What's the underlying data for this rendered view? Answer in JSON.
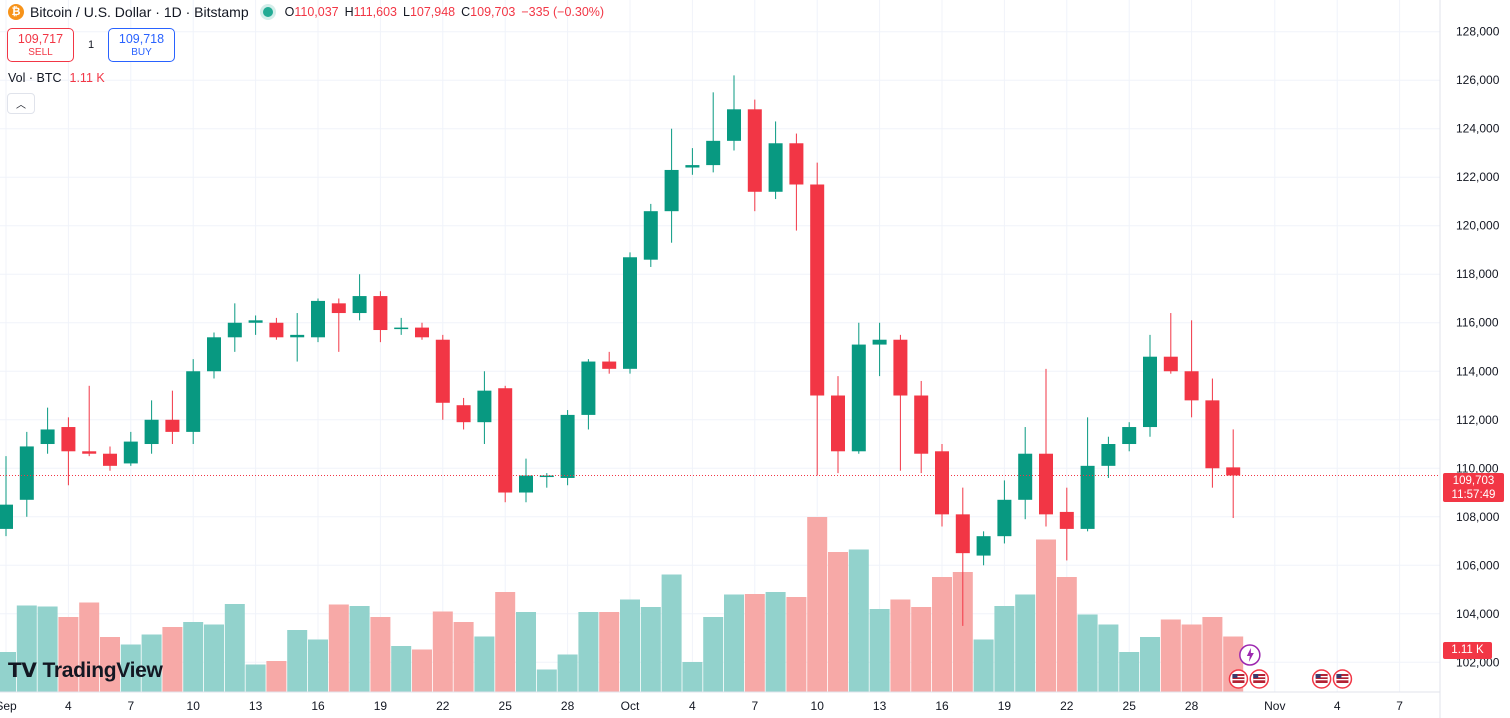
{
  "legend": {
    "symbol_title": "Bitcoin / U.S. Dollar · 1D · Bitstamp",
    "open_label": "O",
    "open": "110,037",
    "high_label": "H",
    "high": "111,603",
    "low_label": "L",
    "low": "107,948",
    "close_label": "C",
    "close": "109,703",
    "change": "−335 (−0.30%)"
  },
  "trade": {
    "sell_price": "109,717",
    "sell_label": "SELL",
    "spread": "1",
    "buy_price": "109,718",
    "buy_label": "BUY"
  },
  "volume_legend": {
    "label": "Vol · BTC",
    "value": "1.11 K"
  },
  "price_tag": {
    "price": "109,703",
    "countdown": "11:57:49"
  },
  "volume_tag": "1.11 K",
  "logo_text": "TradingView",
  "colors": {
    "up": "#089981",
    "down": "#f23645",
    "up_volume": "#92d2cc",
    "down_volume": "#f7a9a7",
    "grid": "#f0f3fa"
  },
  "chart_data": {
    "type": "candlestick",
    "y_ticks": [
      "102,000",
      "104,000",
      "106,000",
      "108,000",
      "110,000",
      "112,000",
      "114,000",
      "116,000",
      "118,000",
      "120,000",
      "122,000",
      "124,000",
      "126,000",
      "128,000"
    ],
    "ylim": [
      101600,
      128400
    ],
    "x_tick_labels": [
      {
        "i": 0,
        "label": "Sep"
      },
      {
        "i": 3,
        "label": "4"
      },
      {
        "i": 6,
        "label": "7"
      },
      {
        "i": 9,
        "label": "10"
      },
      {
        "i": 12,
        "label": "13"
      },
      {
        "i": 15,
        "label": "16"
      },
      {
        "i": 18,
        "label": "19"
      },
      {
        "i": 21,
        "label": "22"
      },
      {
        "i": 24,
        "label": "25"
      },
      {
        "i": 27,
        "label": "28"
      },
      {
        "i": 30,
        "label": "Oct"
      },
      {
        "i": 33,
        "label": "4"
      },
      {
        "i": 36,
        "label": "7"
      },
      {
        "i": 39,
        "label": "10"
      },
      {
        "i": 42,
        "label": "13"
      },
      {
        "i": 45,
        "label": "16"
      },
      {
        "i": 48,
        "label": "19"
      },
      {
        "i": 51,
        "label": "22"
      },
      {
        "i": 54,
        "label": "25"
      },
      {
        "i": 57,
        "label": "28"
      },
      {
        "i": 61,
        "label": "Nov"
      },
      {
        "i": 64,
        "label": "4"
      },
      {
        "i": 67,
        "label": "7"
      }
    ],
    "candles": [
      {
        "o": 107500,
        "h": 110500,
        "l": 107200,
        "c": 108500,
        "v": 0.8
      },
      {
        "o": 108700,
        "h": 111500,
        "l": 108000,
        "c": 110900,
        "v": 1.73
      },
      {
        "o": 111000,
        "h": 112500,
        "l": 110600,
        "c": 111600,
        "v": 1.71
      },
      {
        "o": 111700,
        "h": 112100,
        "l": 109300,
        "c": 110700,
        "v": 1.5
      },
      {
        "o": 110700,
        "h": 113400,
        "l": 110500,
        "c": 110600,
        "v": 1.79
      },
      {
        "o": 110600,
        "h": 110900,
        "l": 109900,
        "c": 110100,
        "v": 1.1
      },
      {
        "o": 110200,
        "h": 111500,
        "l": 110100,
        "c": 111100,
        "v": 0.95
      },
      {
        "o": 111000,
        "h": 112800,
        "l": 110600,
        "c": 112000,
        "v": 1.15
      },
      {
        "o": 112000,
        "h": 113200,
        "l": 111000,
        "c": 111500,
        "v": 1.3
      },
      {
        "o": 111500,
        "h": 114500,
        "l": 111000,
        "c": 114000,
        "v": 1.4
      },
      {
        "o": 114000,
        "h": 115600,
        "l": 113700,
        "c": 115400,
        "v": 1.35
      },
      {
        "o": 115400,
        "h": 116800,
        "l": 114800,
        "c": 116000,
        "v": 1.76
      },
      {
        "o": 116000,
        "h": 116300,
        "l": 115500,
        "c": 116100,
        "v": 0.55
      },
      {
        "o": 116000,
        "h": 116200,
        "l": 115300,
        "c": 115400,
        "v": 0.62
      },
      {
        "o": 115400,
        "h": 116400,
        "l": 114400,
        "c": 115500,
        "v": 1.24
      },
      {
        "o": 115400,
        "h": 117000,
        "l": 115200,
        "c": 116900,
        "v": 1.05
      },
      {
        "o": 116800,
        "h": 117000,
        "l": 114800,
        "c": 116400,
        "v": 1.75
      },
      {
        "o": 116400,
        "h": 118000,
        "l": 116100,
        "c": 117100,
        "v": 1.72
      },
      {
        "o": 117100,
        "h": 117300,
        "l": 115200,
        "c": 115700,
        "v": 1.5
      },
      {
        "o": 115800,
        "h": 116200,
        "l": 115500,
        "c": 115800,
        "v": 0.92
      },
      {
        "o": 115800,
        "h": 116000,
        "l": 115300,
        "c": 115400,
        "v": 0.85
      },
      {
        "o": 115300,
        "h": 115500,
        "l": 112000,
        "c": 112700,
        "v": 1.61
      },
      {
        "o": 112600,
        "h": 112900,
        "l": 111600,
        "c": 111900,
        "v": 1.4
      },
      {
        "o": 111900,
        "h": 114000,
        "l": 111000,
        "c": 113200,
        "v": 1.11
      },
      {
        "o": 113300,
        "h": 113400,
        "l": 108600,
        "c": 109000,
        "v": 2.0
      },
      {
        "o": 109000,
        "h": 110400,
        "l": 108600,
        "c": 109700,
        "v": 1.6
      },
      {
        "o": 109700,
        "h": 109800,
        "l": 109200,
        "c": 109700,
        "v": 0.45
      },
      {
        "o": 109600,
        "h": 112400,
        "l": 109300,
        "c": 112200,
        "v": 0.75
      },
      {
        "o": 112200,
        "h": 114500,
        "l": 111600,
        "c": 114400,
        "v": 1.6
      },
      {
        "o": 114400,
        "h": 114800,
        "l": 113900,
        "c": 114100,
        "v": 1.6
      },
      {
        "o": 114100,
        "h": 118900,
        "l": 113900,
        "c": 118700,
        "v": 1.85
      },
      {
        "o": 118600,
        "h": 120900,
        "l": 118300,
        "c": 120600,
        "v": 1.7
      },
      {
        "o": 120600,
        "h": 124000,
        "l": 119300,
        "c": 122300,
        "v": 2.35
      },
      {
        "o": 122400,
        "h": 123200,
        "l": 122100,
        "c": 122500,
        "v": 0.6
      },
      {
        "o": 122500,
        "h": 125500,
        "l": 122200,
        "c": 123500,
        "v": 1.5
      },
      {
        "o": 123500,
        "h": 126200,
        "l": 123100,
        "c": 124800,
        "v": 1.95
      },
      {
        "o": 124800,
        "h": 125200,
        "l": 120600,
        "c": 121400,
        "v": 1.96
      },
      {
        "o": 121400,
        "h": 124300,
        "l": 121100,
        "c": 123400,
        "v": 2.0
      },
      {
        "o": 123400,
        "h": 123800,
        "l": 119800,
        "c": 121700,
        "v": 1.9
      },
      {
        "o": 121700,
        "h": 122600,
        "l": 109700,
        "c": 113000,
        "v": 3.5
      },
      {
        "o": 113000,
        "h": 113800,
        "l": 109800,
        "c": 110700,
        "v": 2.8
      },
      {
        "o": 110700,
        "h": 116000,
        "l": 110600,
        "c": 115100,
        "v": 2.85
      },
      {
        "o": 115100,
        "h": 116000,
        "l": 113800,
        "c": 115300,
        "v": 1.66
      },
      {
        "o": 115300,
        "h": 115500,
        "l": 109900,
        "c": 113000,
        "v": 1.85
      },
      {
        "o": 113000,
        "h": 113600,
        "l": 109800,
        "c": 110600,
        "v": 1.7
      },
      {
        "o": 110700,
        "h": 111000,
        "l": 107600,
        "c": 108100,
        "v": 2.3
      },
      {
        "o": 108100,
        "h": 109200,
        "l": 103500,
        "c": 106500,
        "v": 2.4
      },
      {
        "o": 106400,
        "h": 107400,
        "l": 106000,
        "c": 107200,
        "v": 1.05
      },
      {
        "o": 107200,
        "h": 109500,
        "l": 106900,
        "c": 108700,
        "v": 1.72
      },
      {
        "o": 108700,
        "h": 111700,
        "l": 107900,
        "c": 110600,
        "v": 1.95
      },
      {
        "o": 110600,
        "h": 114100,
        "l": 107600,
        "c": 108100,
        "v": 3.05
      },
      {
        "o": 108200,
        "h": 109200,
        "l": 106200,
        "c": 107500,
        "v": 2.3
      },
      {
        "o": 107500,
        "h": 112100,
        "l": 107400,
        "c": 110100,
        "v": 1.55
      },
      {
        "o": 110100,
        "h": 111300,
        "l": 109600,
        "c": 111000,
        "v": 1.35
      },
      {
        "o": 111000,
        "h": 111900,
        "l": 110700,
        "c": 111700,
        "v": 0.8
      },
      {
        "o": 111700,
        "h": 115500,
        "l": 111300,
        "c": 114600,
        "v": 1.1
      },
      {
        "o": 114600,
        "h": 116400,
        "l": 113900,
        "c": 114000,
        "v": 1.45
      },
      {
        "o": 114000,
        "h": 116100,
        "l": 112100,
        "c": 112800,
        "v": 1.35
      },
      {
        "o": 112800,
        "h": 113700,
        "l": 109200,
        "c": 110000,
        "v": 1.5
      },
      {
        "o": 110037,
        "h": 111603,
        "l": 107948,
        "c": 109703,
        "v": 1.11
      }
    ],
    "current_price": 109703
  }
}
